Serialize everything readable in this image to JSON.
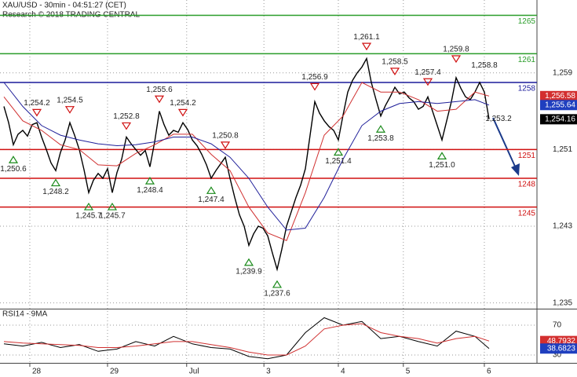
{
  "chart_data": [
    {
      "type": "line",
      "title": "XAU/USD - 30min - 04:51:27 (CET)",
      "subtitle": "Research © 2018 TRADING CENTRAL",
      "xlim": [
        -0.83,
        113.17
      ],
      "xticks": [
        {
          "value": 5.5,
          "label": "28"
        },
        {
          "value": 22,
          "label": "29"
        },
        {
          "value": 38.8,
          "label": "Jul"
        },
        {
          "value": 55.2,
          "label": "3"
        },
        {
          "value": 71,
          "label": "4"
        },
        {
          "value": 84.8,
          "label": "5"
        },
        {
          "value": 102,
          "label": "6"
        }
      ],
      "ylim": [
        1234.4,
        1266.6
      ],
      "yticks": [
        {
          "value": 1235,
          "label": "1,235"
        },
        {
          "value": 1243,
          "label": "1,243"
        },
        {
          "value": 1251,
          "label": "1,251"
        },
        {
          "value": 1259,
          "label": "1,259"
        }
      ],
      "grid": true,
      "series": [
        {
          "color": "#000000",
          "width": 1.4,
          "values": [
            1255.5,
            1253.8,
            1251.5,
            1252.6,
            1253,
            1252.4,
            1253.6,
            1253.8,
            1252.3,
            1251,
            1249.6,
            1248.8,
            1250.7,
            1252,
            1253.8,
            1252.5,
            1251,
            1248.9,
            1246.5,
            1247.8,
            1248.5,
            1248,
            1249,
            1246.5,
            1248.6,
            1250,
            1252.3,
            1251.6,
            1251,
            1250.4,
            1250.9,
            1249.2,
            1251.8,
            1255,
            1253.6,
            1252.5,
            1253,
            1252.8,
            1253.8,
            1253.1,
            1252,
            1251.4,
            1250.5,
            1249.4,
            1248,
            1248.8,
            1249.5,
            1250.2,
            1248,
            1246,
            1244.2,
            1243,
            1241,
            1242.2,
            1243,
            1242.8,
            1242,
            1240.2,
            1238.5,
            1240.6,
            1243,
            1244.5,
            1246,
            1247.3,
            1249,
            1252.5,
            1256,
            1254.8,
            1254,
            1253.4,
            1253,
            1252,
            1254.6,
            1257,
            1258.2,
            1259,
            1259.6,
            1260.5,
            1258,
            1256.2,
            1254.5,
            1255.6,
            1256.5,
            1257.5,
            1256.8,
            1257,
            1256.4,
            1256,
            1255.2,
            1255.5,
            1256.5,
            1255,
            1253.5,
            1252,
            1254,
            1256,
            1258.5,
            1257.4,
            1256.5,
            1256.2,
            1257,
            1258,
            1257,
            1254.16
          ]
        },
        {
          "color": "#d03030",
          "width": 1,
          "x": [
            0,
            4,
            8,
            12,
            16,
            20,
            24,
            28,
            32,
            36,
            40,
            44,
            48,
            52,
            56,
            60,
            64,
            68,
            72,
            76,
            80,
            84,
            88,
            92,
            96,
            100,
            103
          ],
          "values": [
            1256.5,
            1254,
            1253,
            1251.5,
            1251,
            1249.4,
            1249.3,
            1250.6,
            1251.5,
            1252.6,
            1252.6,
            1250.5,
            1248.8,
            1245,
            1242.3,
            1241.5,
            1246.5,
            1252.5,
            1254.5,
            1258,
            1257,
            1257,
            1256.2,
            1255,
            1255.2,
            1257,
            1256.58
          ]
        },
        {
          "color": "#20209a",
          "width": 1,
          "x": [
            0,
            4,
            8,
            12,
            16,
            20,
            24,
            28,
            32,
            36,
            40,
            44,
            48,
            52,
            56,
            60,
            64,
            68,
            72,
            76,
            80,
            84,
            88,
            92,
            96,
            100,
            103
          ],
          "values": [
            1258,
            1255.5,
            1253.5,
            1252.5,
            1252,
            1251.6,
            1251.4,
            1251.5,
            1251.8,
            1252.3,
            1252.3,
            1251.6,
            1250.2,
            1248,
            1245,
            1242.6,
            1242.8,
            1246,
            1250,
            1253.5,
            1255,
            1255.8,
            1256,
            1255.8,
            1256,
            1256.2,
            1255.64
          ]
        }
      ],
      "levels": [
        {
          "value": 1265,
          "color": "#2a9d2a"
        },
        {
          "value": 1261,
          "color": "#2a9d2a"
        },
        {
          "value": 1258,
          "color": "#1a1a9a"
        },
        {
          "value": 1251,
          "color": "#d01010"
        },
        {
          "value": 1248,
          "color": "#d01010"
        },
        {
          "value": 1245,
          "color": "#d01010"
        }
      ],
      "annotations": [
        {
          "x": 2,
          "value": 1250.6,
          "label": "1,250.6",
          "marker": "up"
        },
        {
          "x": 7,
          "value": 1254.2,
          "label": "1,254.2",
          "marker": "down"
        },
        {
          "x": 11,
          "value": 1248.2,
          "label": "1,248.2",
          "marker": "up"
        },
        {
          "x": 14,
          "value": 1254.5,
          "label": "1,254.5",
          "marker": "down"
        },
        {
          "x": 18,
          "value": 1245.7,
          "label": "1,245.7",
          "marker": "up"
        },
        {
          "x": 23,
          "value": 1245.7,
          "label": "1,245.7",
          "marker": "up"
        },
        {
          "x": 26,
          "value": 1252.8,
          "label": "1,252.8",
          "marker": "down"
        },
        {
          "x": 31,
          "value": 1248.4,
          "label": "1,248.4",
          "marker": "up"
        },
        {
          "x": 33,
          "value": 1255.6,
          "label": "1,255.6",
          "marker": "down"
        },
        {
          "x": 38,
          "value": 1254.2,
          "label": "1,254.2",
          "marker": "down"
        },
        {
          "x": 44,
          "value": 1247.4,
          "label": "1,247.4",
          "marker": "up"
        },
        {
          "x": 47,
          "value": 1250.8,
          "label": "1,250.8",
          "marker": "down"
        },
        {
          "x": 52,
          "value": 1239.9,
          "label": "1,239.9",
          "marker": "up"
        },
        {
          "x": 58,
          "value": 1237.6,
          "label": "1,237.6",
          "marker": "up"
        },
        {
          "x": 66,
          "value": 1256.9,
          "label": "1,256.9",
          "marker": "down"
        },
        {
          "x": 71,
          "value": 1251.4,
          "label": "1,251.4",
          "marker": "up"
        },
        {
          "x": 77,
          "value": 1261.1,
          "label": "1,261.1",
          "marker": "down"
        },
        {
          "x": 80,
          "value": 1253.8,
          "label": "1,253.8",
          "marker": "up"
        },
        {
          "x": 83,
          "value": 1258.5,
          "label": "1,258.5",
          "marker": "down"
        },
        {
          "x": 90,
          "value": 1257.4,
          "label": "1,257.4",
          "marker": "down"
        },
        {
          "x": 93,
          "value": 1251.0,
          "label": "1,251.0",
          "marker": "up"
        },
        {
          "x": 96,
          "value": 1259.8,
          "label": "1,259.8",
          "marker": "down"
        },
        {
          "x": 102,
          "value": 1258.8,
          "label": "1,258.8",
          "marker": "none"
        },
        {
          "x": 105,
          "value": 1253.2,
          "label": "1,253.2",
          "marker": "none"
        }
      ],
      "price_tags": [
        {
          "value": 1256.58,
          "label": "1,256.58",
          "color": "#d32f2f"
        },
        {
          "value": 1255.64,
          "label": "1,255.64",
          "color": "#1f3fbf"
        },
        {
          "value": 1254.16,
          "label": "1,254.16",
          "color": "#000000"
        }
      ]
    },
    {
      "type": "line",
      "title": "RSI14 - 9MA",
      "xlim": [
        -0.83,
        113.17
      ],
      "ylim": [
        19.5,
        90
      ],
      "yticks": [
        30,
        70
      ],
      "grid": true,
      "series": [
        {
          "color": "#000000",
          "width": 1,
          "x": [
            0,
            4,
            8,
            12,
            16,
            20,
            24,
            28,
            32,
            36,
            40,
            44,
            48,
            52,
            56,
            60,
            64,
            68,
            72,
            76,
            80,
            84,
            88,
            92,
            96,
            100,
            103
          ],
          "values": [
            45,
            42,
            47,
            40,
            44,
            35,
            38,
            48,
            42,
            55,
            45,
            40,
            38,
            28,
            25,
            30,
            60,
            80,
            70,
            75,
            52,
            55,
            48,
            42,
            62,
            55,
            38.6823
          ]
        },
        {
          "color": "#d03030",
          "width": 1,
          "x": [
            0,
            4,
            8,
            12,
            16,
            20,
            24,
            28,
            32,
            36,
            40,
            44,
            48,
            52,
            56,
            60,
            64,
            68,
            72,
            76,
            80,
            84,
            88,
            92,
            96,
            100,
            103
          ],
          "values": [
            48,
            46,
            45,
            44,
            43,
            40,
            40,
            42,
            45,
            48,
            48,
            44,
            40,
            34,
            30,
            30,
            42,
            65,
            70,
            72,
            60,
            55,
            52,
            46,
            52,
            55,
            48.7932
          ]
        }
      ],
      "price_tags": [
        {
          "value": 48.7932,
          "label": "48.7932",
          "color": "#d32f2f"
        },
        {
          "value": 38.6823,
          "label": "38.6823",
          "color": "#1f3fbf"
        }
      ]
    }
  ]
}
